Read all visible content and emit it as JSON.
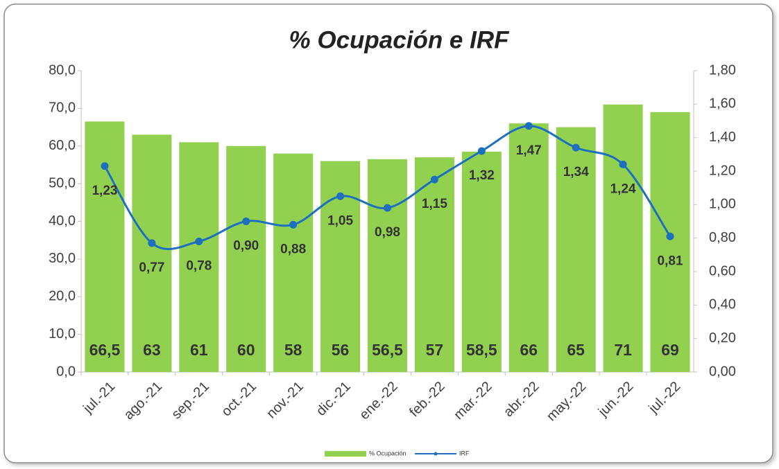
{
  "chart_data": {
    "type": "bar",
    "title": "% Ocupación e IRF",
    "categories": [
      "jul.-21",
      "ago.-21",
      "sep.-21",
      "oct.-21",
      "nov.-21",
      "dic.-21",
      "ene.-22",
      "feb.-22",
      "mar.-22",
      "abr.-22",
      "may.-22",
      "jun.-22",
      "jul.-22"
    ],
    "series": [
      {
        "name": "% Ocupación",
        "type": "bar",
        "color": "#92d050",
        "values": [
          66.5,
          63,
          61,
          60,
          58,
          56,
          56.5,
          57,
          58.5,
          66,
          65,
          71,
          69
        ],
        "value_labels": [
          "66,5",
          "63",
          "61",
          "60",
          "58",
          "56",
          "56,5",
          "57",
          "58,5",
          "66",
          "65",
          "71",
          "69"
        ]
      },
      {
        "name": "IRF",
        "type": "line",
        "axis": "y2",
        "color": "#1f6fbf",
        "values": [
          1.23,
          0.77,
          0.78,
          0.9,
          0.88,
          1.05,
          0.98,
          1.15,
          1.32,
          1.47,
          1.34,
          1.24,
          0.81
        ],
        "value_labels": [
          "1,23",
          "0,77",
          "0,78",
          "0,90",
          "0,88",
          "1,05",
          "0,98",
          "1,15",
          "1,32",
          "1,47",
          "1,34",
          "1,24",
          "0,81"
        ]
      }
    ],
    "ylim": [
      0,
      80
    ],
    "yticks": [
      {
        "value": 0,
        "label": "0,0"
      },
      {
        "value": 10,
        "label": "10,0"
      },
      {
        "value": 20,
        "label": "20,0"
      },
      {
        "value": 30,
        "label": "30,0"
      },
      {
        "value": 40,
        "label": "40,0"
      },
      {
        "value": 50,
        "label": "50,0"
      },
      {
        "value": 60,
        "label": "60,0"
      },
      {
        "value": 70,
        "label": "70,0"
      },
      {
        "value": 80,
        "label": "80,0"
      }
    ],
    "y2lim": [
      0,
      1.8
    ],
    "y2ticks": [
      {
        "value": 0,
        "label": "0,00"
      },
      {
        "value": 0.2,
        "label": "0,20"
      },
      {
        "value": 0.4,
        "label": "0,40"
      },
      {
        "value": 0.6,
        "label": "0,60"
      },
      {
        "value": 0.8,
        "label": "0,80"
      },
      {
        "value": 1.0,
        "label": "1,00"
      },
      {
        "value": 1.2,
        "label": "1,20"
      },
      {
        "value": 1.4,
        "label": "1,40"
      },
      {
        "value": 1.6,
        "label": "1,60"
      },
      {
        "value": 1.8,
        "label": "1,80"
      }
    ],
    "grid": false,
    "legend": "bottom"
  }
}
